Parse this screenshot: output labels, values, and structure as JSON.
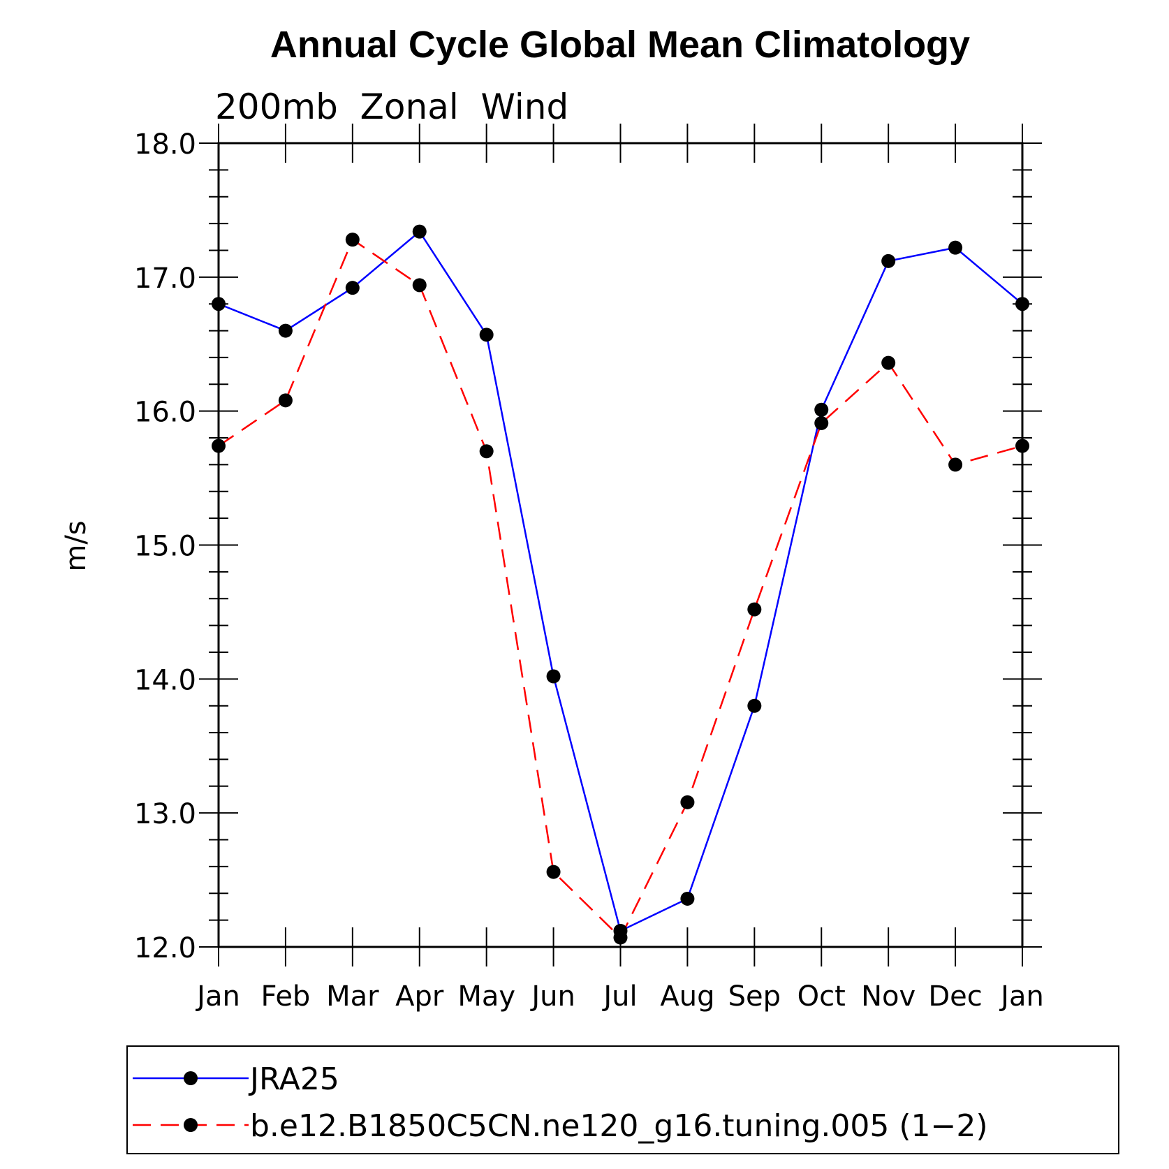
{
  "chart_data": {
    "type": "line",
    "title": "Annual Cycle Global Mean Climatology",
    "subtitle": "200mb  Zonal  Wind",
    "xlabel": "",
    "ylabel": "m/s",
    "categories": [
      "Jan",
      "Feb",
      "Mar",
      "Apr",
      "May",
      "Jun",
      "Jul",
      "Aug",
      "Sep",
      "Oct",
      "Nov",
      "Dec",
      "Jan"
    ],
    "ylim": [
      12.0,
      18.0
    ],
    "yticks": [
      "12.0",
      "13.0",
      "14.0",
      "15.0",
      "16.0",
      "17.0",
      "18.0"
    ],
    "series": [
      {
        "name": "JRA25",
        "color": "#0000ff",
        "dash": "solid",
        "values": [
          16.8,
          16.6,
          16.92,
          17.34,
          16.57,
          14.02,
          12.12,
          12.36,
          13.8,
          16.01,
          17.12,
          17.22,
          16.8
        ]
      },
      {
        "name": "b.e12.B1850C5CN.ne120_g16.tuning.005 (1−2)",
        "color": "#ff0000",
        "dash": "dashed",
        "values": [
          15.74,
          16.08,
          17.28,
          16.94,
          15.7,
          12.56,
          12.07,
          13.08,
          14.52,
          15.91,
          16.36,
          15.6,
          15.74
        ]
      }
    ],
    "marker_color": "#000000",
    "legend_position": "bottom"
  }
}
